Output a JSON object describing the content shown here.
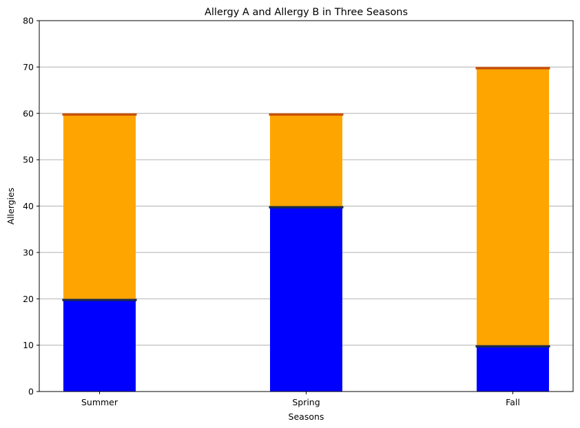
{
  "chart_data": {
    "type": "bar",
    "stacked": true,
    "title": "Allergy A and Allergy B in Three Seasons",
    "xlabel": "Seasons",
    "ylabel": "Allergies",
    "categories": [
      "Summer",
      "Spring",
      "Fall"
    ],
    "series": [
      {
        "values": [
          20,
          40,
          10
        ],
        "color": "#0000ff",
        "edge_color": "#1a2a4a"
      },
      {
        "values": [
          40,
          20,
          60
        ],
        "color": "#ffa500",
        "edge_color": "#c8500a"
      }
    ],
    "ylim": [
      0,
      80
    ],
    "yticks": [
      0,
      10,
      20,
      30,
      40,
      50,
      60,
      70,
      80
    ],
    "grid": "y",
    "legend": "none"
  }
}
